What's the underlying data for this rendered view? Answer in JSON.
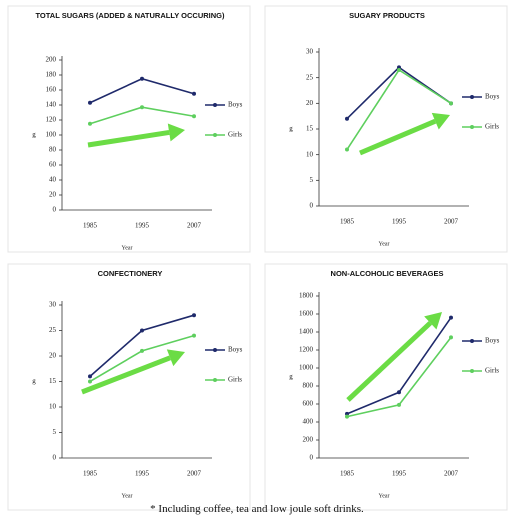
{
  "chart_data": [
    {
      "type": "line",
      "title": "TOTAL SUGARS (ADDED & NATURALLY OCCURING)",
      "x_label": "Year",
      "y_label": "g",
      "categories": [
        "1985",
        "1995",
        "2007"
      ],
      "series": [
        {
          "name": "Boys",
          "color": "#1f2a6b",
          "values": [
            143,
            175,
            155
          ]
        },
        {
          "name": "Girls",
          "color": "#5ecf5e",
          "values": [
            115,
            137,
            125
          ]
        }
      ],
      "ylim": [
        0,
        200
      ],
      "yticks": [
        0,
        20,
        40,
        60,
        80,
        100,
        120,
        140,
        160,
        180,
        200
      ]
    },
    {
      "type": "line",
      "title": "SUGARY PRODUCTS",
      "x_label": "Year",
      "y_label": "g",
      "categories": [
        "1985",
        "1995",
        "2007"
      ],
      "series": [
        {
          "name": "Boys",
          "color": "#1f2a6b",
          "values": [
            17,
            27,
            20
          ]
        },
        {
          "name": "Girls",
          "color": "#5ecf5e",
          "values": [
            11,
            26.5,
            20
          ]
        }
      ],
      "ylim": [
        0,
        30
      ],
      "yticks": [
        0,
        5,
        10,
        15,
        20,
        25,
        30
      ]
    },
    {
      "type": "line",
      "title": "CONFECTIONERY",
      "x_label": "Year",
      "y_label": "g",
      "categories": [
        "1985",
        "1995",
        "2007"
      ],
      "series": [
        {
          "name": "Boys",
          "color": "#1f2a6b",
          "values": [
            16,
            25,
            28
          ]
        },
        {
          "name": "Girls",
          "color": "#5ecf5e",
          "values": [
            15,
            21,
            24
          ]
        }
      ],
      "ylim": [
        0,
        30
      ],
      "yticks": [
        0,
        5,
        10,
        15,
        20,
        25,
        30
      ]
    },
    {
      "type": "line",
      "title": "NON-ALCOHOLIC BEVERAGES",
      "x_label": "Year",
      "y_label": "g",
      "categories": [
        "1985",
        "1995",
        "2007"
      ],
      "series": [
        {
          "name": "Boys",
          "color": "#1f2a6b",
          "values": [
            490,
            730,
            1560
          ]
        },
        {
          "name": "Girls",
          "color": "#5ecf5e",
          "values": [
            460,
            590,
            1340
          ]
        }
      ],
      "ylim": [
        0,
        1800
      ],
      "yticks": [
        0,
        200,
        400,
        600,
        800,
        1000,
        1200,
        1400,
        1600,
        1800
      ]
    }
  ],
  "footnote": "* Including coffee, tea and low joule soft drinks."
}
